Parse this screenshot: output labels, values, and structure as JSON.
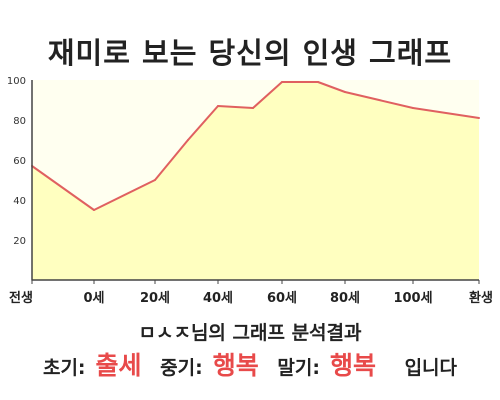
{
  "title": "재미로 보는 당신의 인생 그래프",
  "analysis_title": "ㅁㅅㅈ님의 그래프 분석결과",
  "result": {
    "early_label": "초기:",
    "early_value": "출세",
    "middle_label": "중기:",
    "middle_value": "행복",
    "late_label": "말기:",
    "late_value": "행복",
    "ending": "입니다"
  },
  "colors": {
    "line": "#e06060",
    "fill": "#ffffc0",
    "plot_bg": "#fffff0",
    "accent_text": "#e84a4a"
  },
  "chart_data": {
    "type": "area",
    "ylim": [
      0,
      100
    ],
    "y_ticks": [
      100,
      80,
      60,
      40,
      20
    ],
    "grid": false,
    "x_ticks": [
      "전생",
      "0세",
      "20세",
      "40세",
      "60세",
      "80세",
      "100세",
      "환생"
    ],
    "series": [
      {
        "points": [
          {
            "x": "전생",
            "y": 57
          },
          {
            "x": "0세",
            "y": 35
          },
          {
            "x": "20세",
            "y": 50
          },
          {
            "x": "30세",
            "y": 70
          },
          {
            "x": "40세",
            "y": 87
          },
          {
            "x": "50세",
            "y": 86
          },
          {
            "x": "60세",
            "y": 99
          },
          {
            "x": "70세",
            "y": 99
          },
          {
            "x": "80세",
            "y": 94
          },
          {
            "x": "100세",
            "y": 86
          },
          {
            "x": "환생",
            "y": 81
          }
        ]
      }
    ]
  }
}
